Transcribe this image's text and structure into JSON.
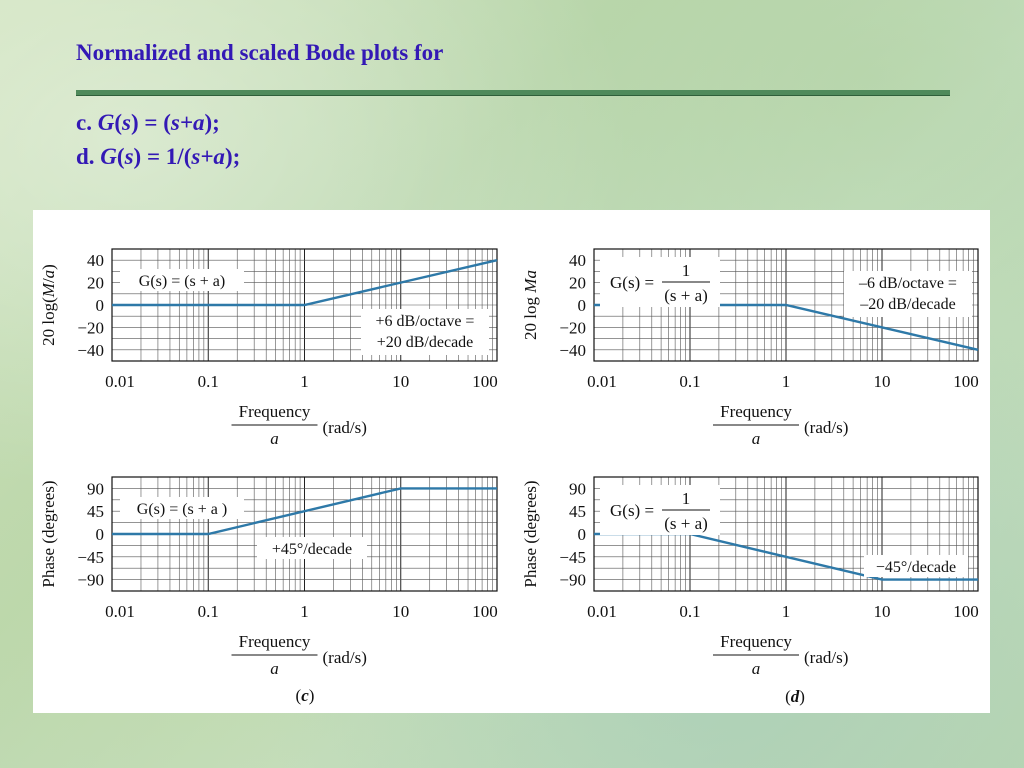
{
  "header": {
    "title": "Normalized and scaled Bode plots for",
    "items": [
      {
        "label": "c.",
        "expr": [
          "G",
          "(",
          "s",
          ") = (",
          "s+a",
          ");"
        ]
      },
      {
        "label": "d.",
        "expr": [
          "G",
          "(",
          "s",
          ") = 1/(",
          "s+a",
          ");"
        ]
      }
    ]
  },
  "figure_labels": {
    "left": [
      "(",
      "c",
      ")"
    ],
    "right": [
      "(",
      "d",
      ")"
    ]
  },
  "chart_data": [
    {
      "id": "c-magnitude",
      "type": "line",
      "xscale": "log",
      "xlim": [
        0.01,
        100
      ],
      "ylim": [
        -50,
        50
      ],
      "xticks": [
        "0.01",
        "0.1",
        "1",
        "10",
        "100"
      ],
      "yticks": [
        "40",
        "20",
        "0",
        "−20",
        "−40"
      ],
      "ytick_values": [
        40,
        20,
        0,
        -20,
        -40
      ],
      "ylabel": [
        "20 log(",
        "M",
        "/",
        "a",
        ")"
      ],
      "xlabel": {
        "numerator": "Frequency",
        "denominator": "a",
        "unit": "(rad/s)"
      },
      "grid": true,
      "series": [
        {
          "x": [
            0.01,
            1,
            100
          ],
          "y": [
            0,
            0,
            40
          ],
          "color": "#2e79a8"
        }
      ],
      "annotations": [
        {
          "text": "G(s) = (s + a)",
          "position": "top-left"
        },
        {
          "text": [
            "+6 dB/octave =",
            "+20 dB/decade"
          ],
          "position": "bottom-right"
        }
      ]
    },
    {
      "id": "d-magnitude",
      "type": "line",
      "xscale": "log",
      "xlim": [
        0.01,
        100
      ],
      "ylim": [
        -50,
        50
      ],
      "xticks": [
        "0.01",
        "0.1",
        "1",
        "10",
        "100"
      ],
      "yticks": [
        "40",
        "20",
        "0",
        "−20",
        "−40"
      ],
      "ytick_values": [
        40,
        20,
        0,
        -20,
        -40
      ],
      "ylabel": [
        "20 log ",
        "Ma"
      ],
      "xlabel": {
        "numerator": "Frequency",
        "denominator": "a",
        "unit": "(rad/s)"
      },
      "grid": true,
      "series": [
        {
          "x": [
            0.01,
            1,
            100
          ],
          "y": [
            0,
            0,
            -40
          ],
          "color": "#2e79a8"
        }
      ],
      "annotations": [
        {
          "text": {
            "lhs": "G(s) =",
            "numerator": "1",
            "denominator": "(s + a)"
          },
          "position": "top-left"
        },
        {
          "text": [
            "–6 dB/octave =",
            "–20 dB/decade"
          ],
          "position": "top-right"
        }
      ]
    },
    {
      "id": "c-phase",
      "type": "line",
      "xscale": "log",
      "xlim": [
        0.01,
        100
      ],
      "ylim": [
        -112.5,
        112.5
      ],
      "xticks": [
        "0.01",
        "0.1",
        "1",
        "10",
        "100"
      ],
      "yticks": [
        "90",
        "45",
        "0",
        "−45",
        "−90"
      ],
      "ytick_values": [
        90,
        45,
        0,
        -45,
        -90
      ],
      "ylabel": [
        "Phase (degrees)"
      ],
      "xlabel": {
        "numerator": "Frequency",
        "denominator": "a",
        "unit": "(rad/s)"
      },
      "grid": true,
      "series": [
        {
          "x": [
            0.01,
            0.1,
            10,
            100
          ],
          "y": [
            0,
            0,
            90,
            90
          ],
          "color": "#2e79a8"
        }
      ],
      "annotations": [
        {
          "text": "G(s) = (s + a )",
          "position": "top-left"
        },
        {
          "text": "+45°/decade",
          "position": "center"
        }
      ]
    },
    {
      "id": "d-phase",
      "type": "line",
      "xscale": "log",
      "xlim": [
        0.01,
        100
      ],
      "ylim": [
        -112.5,
        112.5
      ],
      "xticks": [
        "0.01",
        "0.1",
        "1",
        "10",
        "100"
      ],
      "yticks": [
        "90",
        "45",
        "0",
        "−45",
        "−90"
      ],
      "ytick_values": [
        90,
        45,
        0,
        -45,
        -90
      ],
      "ylabel": [
        "Phase (degrees)"
      ],
      "xlabel": {
        "numerator": "Frequency",
        "denominator": "a",
        "unit": "(rad/s)"
      },
      "grid": true,
      "series": [
        {
          "x": [
            0.01,
            0.1,
            10,
            100
          ],
          "y": [
            0,
            0,
            -90,
            -90
          ],
          "color": "#2e79a8"
        }
      ],
      "annotations": [
        {
          "text": {
            "lhs": "G(s) =",
            "numerator": "1",
            "denominator": "(s + a)"
          },
          "position": "top-left"
        },
        {
          "text": "−45°/decade",
          "position": "bottom-right"
        }
      ]
    }
  ]
}
